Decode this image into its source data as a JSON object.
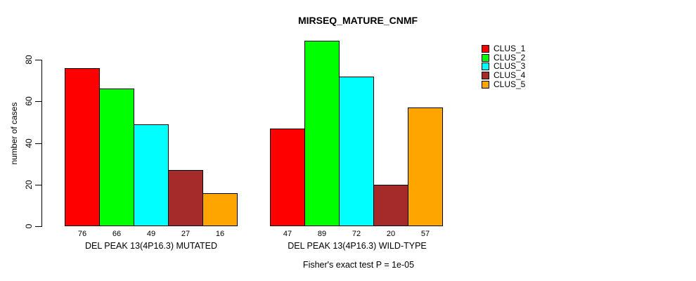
{
  "chart_data": {
    "type": "bar",
    "title": "MIRSEQ_MATURE_CNMF",
    "ylabel": "number of cases",
    "yticks": [
      0,
      20,
      40,
      60,
      80
    ],
    "ylim": [
      0,
      93
    ],
    "grid": false,
    "legend_position": "right",
    "categories": [
      "DEL PEAK 13(4P16.3) MUTATED",
      "DEL PEAK 13(4P16.3) WILD-TYPE"
    ],
    "series": [
      {
        "name": "CLUS_1",
        "color": "#ff0000",
        "values": [
          76,
          47
        ]
      },
      {
        "name": "CLUS_2",
        "color": "#00ff00",
        "values": [
          66,
          89
        ]
      },
      {
        "name": "CLUS_3",
        "color": "#00ffff",
        "values": [
          49,
          72
        ]
      },
      {
        "name": "CLUS_4",
        "color": "#a52a2a",
        "values": [
          27,
          20
        ]
      },
      {
        "name": "CLUS_5",
        "color": "#ffa500",
        "values": [
          16,
          57
        ]
      }
    ],
    "footnote": "Fisher's exact test P = 1e-05"
  }
}
